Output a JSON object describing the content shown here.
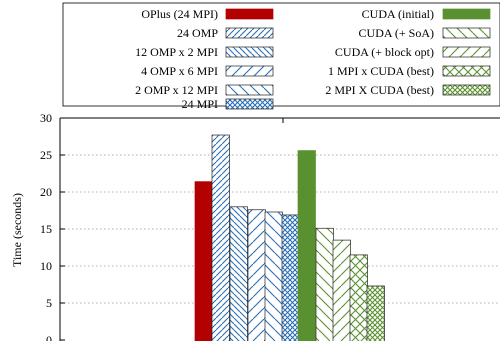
{
  "chart_data": {
    "type": "bar",
    "title": "",
    "xlabel": "",
    "ylabel": "Time (seconds)",
    "ylim": [
      0,
      30
    ],
    "yticks": [
      0,
      5,
      10,
      15,
      20,
      25,
      30
    ],
    "grid": "horizontal dotted",
    "legend_position": "top",
    "series": [
      {
        "name": "OPlus (24 MPI)",
        "value": 21.4,
        "color": "#b30000",
        "pattern": "solid"
      },
      {
        "name": "24 OMP",
        "value": 27.7,
        "color": "#2a6fb5",
        "pattern": "diag-dense"
      },
      {
        "name": "12 OMP x 2 MPI",
        "value": 18.0,
        "color": "#2a6fb5",
        "pattern": "backdiag-dense"
      },
      {
        "name": "4 OMP x 6 MPI",
        "value": 17.6,
        "color": "#2a6fb5",
        "pattern": "diag-wide"
      },
      {
        "name": "2 OMP x 12 MPI",
        "value": 17.3,
        "color": "#2a6fb5",
        "pattern": "backdiag-wide"
      },
      {
        "name": "24 MPI",
        "value": 16.9,
        "color": "#2a6fb5",
        "pattern": "crosshatch"
      },
      {
        "name": "CUDA (initial)",
        "value": 25.6,
        "color": "#5a9130",
        "pattern": "solid"
      },
      {
        "name": "CUDA (+ SoA)",
        "value": 15.1,
        "color": "#5a9130",
        "pattern": "backdiag-wide"
      },
      {
        "name": "CUDA (+ block opt)",
        "value": 13.5,
        "color": "#5a9130",
        "pattern": "diag-wide"
      },
      {
        "name": "1 MPI x CUDA (best)",
        "value": 11.5,
        "color": "#5a9130",
        "pattern": "crosshatch-wide"
      },
      {
        "name": "2 MPI X CUDA (best)",
        "value": 7.3,
        "color": "#5a9130",
        "pattern": "crosshatch"
      }
    ]
  }
}
